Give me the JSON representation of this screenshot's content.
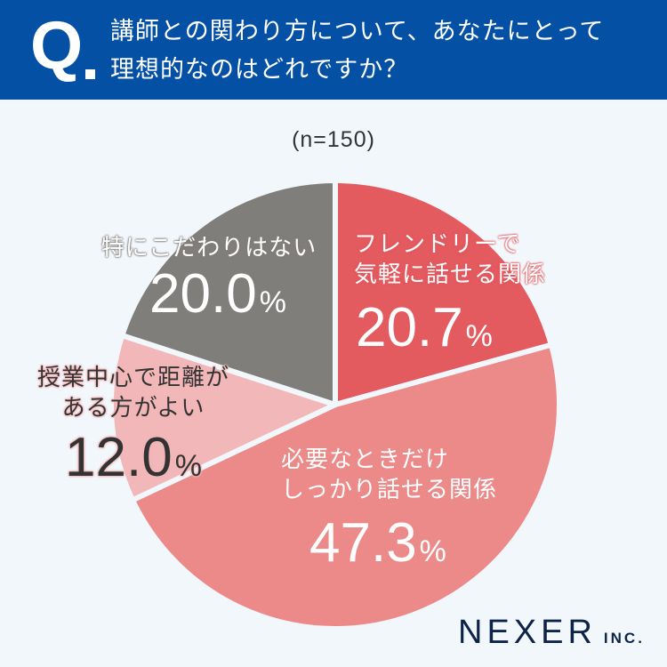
{
  "header": {
    "q_mark": "Q",
    "question_line1": "講師との関わり方について、あなたにとって",
    "question_line2": "理想的なのはどれですか？",
    "bg_color": "#0450A5"
  },
  "sample_size": "(n=150)",
  "logo": {
    "main": "NEXER",
    "sub": "INC."
  },
  "labels": [
    {
      "line1": "フレンドリーで",
      "line2": "気軽に話せる関係",
      "value": "20.7",
      "unit": "%"
    },
    {
      "line1": "必要なときだけ",
      "line2": "しっかり話せる関係",
      "value": "47.3",
      "unit": "%"
    },
    {
      "line1": "授業中心で距離が",
      "line2": "ある方がよい",
      "value": "12.0",
      "unit": "%"
    },
    {
      "line1": "特にこだわりはない",
      "value": "20.0",
      "unit": "%"
    }
  ],
  "chart_data": {
    "type": "pie",
    "title": "講師との関わり方について、あなたにとって理想的なのはどれですか？",
    "subtitle": "(n=150)",
    "categories": [
      "フレンドリーで気軽に話せる関係",
      "必要なときだけしっかり話せる関係",
      "授業中心で距離がある方がよい",
      "特にこだわりはない"
    ],
    "values": [
      20.7,
      47.3,
      12.0,
      20.0
    ],
    "unit": "%",
    "colors": [
      "#E35A5F",
      "#EC8A8A",
      "#F2B7B8",
      "#807E7B"
    ],
    "start_angle": "12 o'clock",
    "direction": "clockwise",
    "legend": "none (labels inside slices)"
  }
}
